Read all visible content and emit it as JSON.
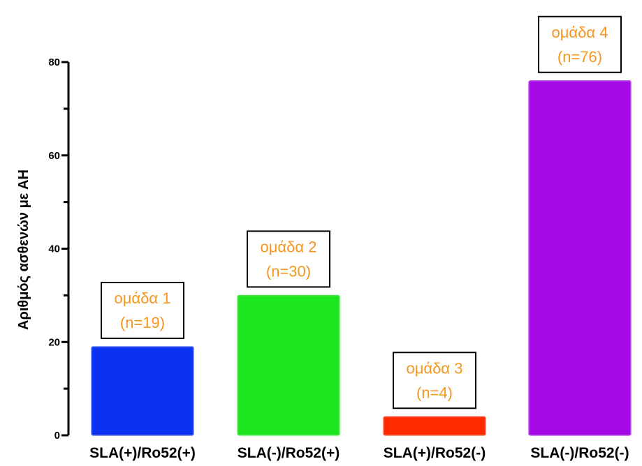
{
  "chart_data": {
    "type": "bar",
    "categories": [
      "SLA(+)/Ro52(+)",
      "SLA(-)/Ro52(+)",
      "SLA(+)/Ro52(-)",
      "SLA(-)/Ro52(-)"
    ],
    "values": [
      19,
      30,
      4,
      76
    ],
    "colors": [
      "#0a32f0",
      "#1ee61e",
      "#ff2a00",
      "#a50ae6"
    ],
    "annotations": [
      {
        "line1": "ομάδα 1",
        "line2": "(n=19)"
      },
      {
        "line1": "ομάδα 2",
        "line2": "(n=30)"
      },
      {
        "line1": "ομάδα 3",
        "line2": "(n=4)"
      },
      {
        "line1": "ομάδα 4",
        "line2": "(n=76)"
      }
    ],
    "annotation_color": "#f5961e",
    "xlabel": "",
    "ylabel": "Αριθμός ασθενών με ΑΗ",
    "ylim": [
      0,
      80
    ],
    "yticks": [
      0,
      20,
      40,
      60,
      80
    ],
    "grid": false
  }
}
